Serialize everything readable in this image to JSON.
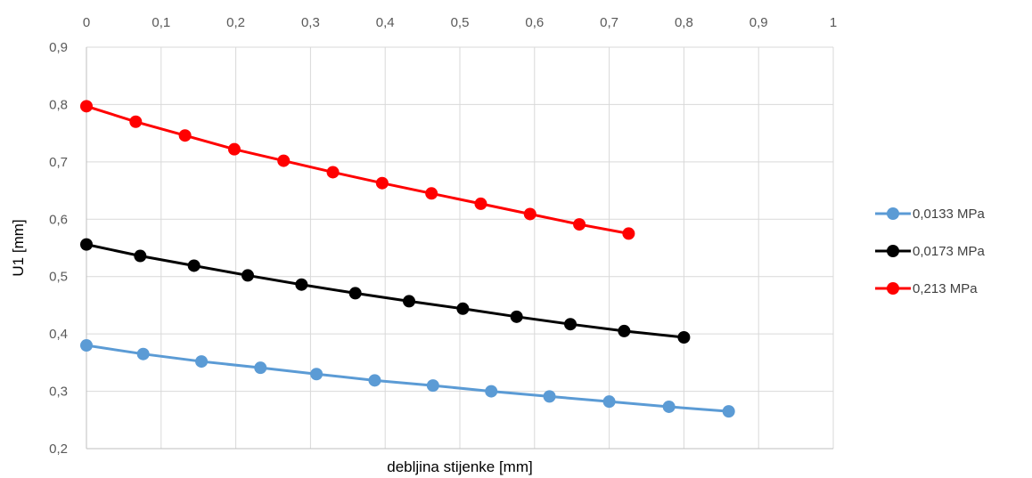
{
  "chart_data": {
    "type": "line",
    "xlabel": "debljina stijenke [mm]",
    "ylabel": "U1 [mm]",
    "xlim": [
      0,
      1
    ],
    "ylim": [
      0.2,
      0.9
    ],
    "x_ticks": [
      "0",
      "0,1",
      "0,2",
      "0,3",
      "0,4",
      "0,5",
      "0,6",
      "0,7",
      "0,8",
      "0,9",
      "1"
    ],
    "y_ticks": [
      "0,2",
      "0,3",
      "0,4",
      "0,5",
      "0,6",
      "0,7",
      "0,8",
      "0,9"
    ],
    "x_tick_values": [
      0,
      0.1,
      0.2,
      0.3,
      0.4,
      0.5,
      0.6,
      0.7,
      0.8,
      0.9,
      1.0
    ],
    "y_tick_values": [
      0.2,
      0.3,
      0.4,
      0.5,
      0.6,
      0.7,
      0.8,
      0.9
    ],
    "x_axis_position": "top",
    "grid": true,
    "legend_position": "right",
    "series": [
      {
        "name": "0,0133 MPa",
        "color": "#5B9BD5",
        "x": [
          0.0,
          0.076,
          0.154,
          0.233,
          0.308,
          0.386,
          0.464,
          0.542,
          0.62,
          0.7,
          0.78,
          0.86
        ],
        "y": [
          0.38,
          0.365,
          0.352,
          0.341,
          0.33,
          0.319,
          0.31,
          0.3,
          0.291,
          0.282,
          0.273,
          0.265
        ]
      },
      {
        "name": "0,0173 MPa",
        "color": "#000000",
        "x": [
          0.0,
          0.072,
          0.144,
          0.216,
          0.288,
          0.36,
          0.432,
          0.504,
          0.576,
          0.648,
          0.72,
          0.8
        ],
        "y": [
          0.556,
          0.536,
          0.519,
          0.502,
          0.486,
          0.471,
          0.457,
          0.444,
          0.43,
          0.417,
          0.405,
          0.394
        ]
      },
      {
        "name": "0,213 MPa",
        "color": "#FF0000",
        "x": [
          0.0,
          0.066,
          0.132,
          0.198,
          0.264,
          0.33,
          0.396,
          0.462,
          0.528,
          0.594,
          0.66,
          0.726
        ],
        "y": [
          0.797,
          0.77,
          0.746,
          0.722,
          0.702,
          0.682,
          0.663,
          0.645,
          0.627,
          0.609,
          0.591,
          0.575
        ]
      }
    ]
  }
}
